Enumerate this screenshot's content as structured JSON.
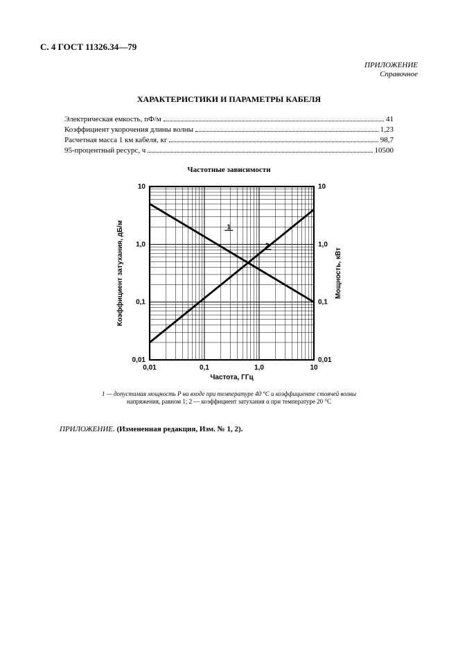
{
  "header": "С. 4 ГОСТ 11326.34—79",
  "appendix_label": "ПРИЛОЖЕНИЕ",
  "appendix_sub": "Справочное",
  "section_title": "ХАРАКТЕРИСТИКИ И ПАРАМЕТРЫ КАБЕЛЯ",
  "params": [
    {
      "label": "Электрическая емкость, пФ/м",
      "value": "41"
    },
    {
      "label": "Коэффициент укорочения длины волны",
      "value": "1,23"
    },
    {
      "label": "Расчетная масса 1 км кабеля, кг",
      "value": "98,7"
    },
    {
      "label": "95-процентный ресурс, ч",
      "value": "10500"
    }
  ],
  "chart": {
    "title": "Частотные зависимости",
    "x_label": "Частота, ГГц",
    "y_left_label": "Коэффициент затухания, дБ/м",
    "y_right_label": "Мощность, кВт",
    "x_ticks": [
      "0,01",
      "0,1",
      "1,0",
      "10"
    ],
    "y_left_ticks": [
      "0,01",
      "0,1",
      "1,0",
      "10"
    ],
    "y_right_ticks": [
      "0,01",
      "0,1",
      "1,0",
      "10"
    ],
    "xlim": [
      0.01,
      10
    ],
    "ylim": [
      0.01,
      10
    ],
    "scale": "log-log",
    "background_color": "#ffffff",
    "frame_color": "#000000",
    "grid_color": "#000000",
    "line_width_major": 1.0,
    "line_width_minor": 0.5,
    "series": [
      {
        "id": "1",
        "description": "допустимая мощность P",
        "endpoints": [
          [
            0.01,
            5.0
          ],
          [
            10,
            0.1
          ]
        ],
        "label_pos": [
          0.28,
          1.6
        ],
        "color": "#000000",
        "width": 2.8
      },
      {
        "id": "2",
        "description": "коэффициент затухания α",
        "endpoints": [
          [
            0.01,
            0.02
          ],
          [
            10,
            4.0
          ]
        ],
        "label_pos": [
          1.4,
          0.75
        ],
        "color": "#000000",
        "width": 2.8
      }
    ]
  },
  "caption_line1": "1 — допустимая мощность P на входе при температуре 40 °С и коэффициенте стоячей волны",
  "caption_line2": "напряжения, равном 1; 2 — коэффициент затухания α при температуре 20 °С",
  "amendment_prefix": "ПРИЛОЖЕНИЕ.",
  "amendment_text": "(Измененная редакция, Изм. № 1, 2)."
}
